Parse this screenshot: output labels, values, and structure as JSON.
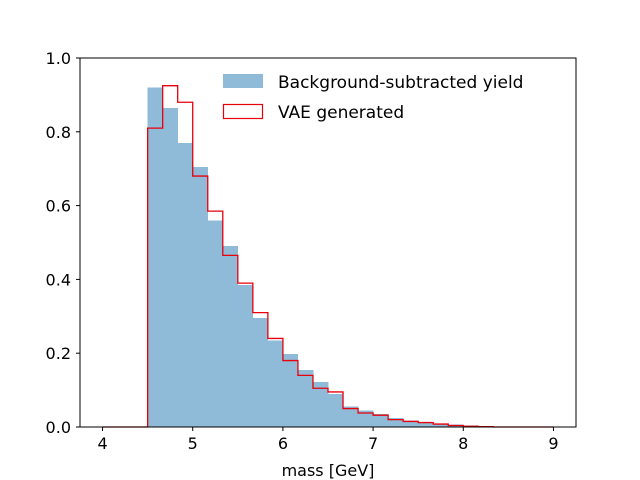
{
  "chart_data": {
    "type": "histogram",
    "title": "",
    "xlabel": "mass [GeV]",
    "ylabel": "",
    "xlim": [
      3.75,
      9.25
    ],
    "ylim": [
      0.0,
      1.0
    ],
    "xticks": [
      "4",
      "5",
      "6",
      "7",
      "8",
      "9"
    ],
    "yticks": [
      "0.0",
      "0.2",
      "0.4",
      "0.6",
      "0.8",
      "1.0"
    ],
    "bin_edges": [
      4.0,
      4.1667,
      4.3333,
      4.5,
      4.6667,
      4.8333,
      5.0,
      5.1667,
      5.3333,
      5.5,
      5.6667,
      5.8333,
      6.0,
      6.1667,
      6.3333,
      6.5,
      6.6667,
      6.8333,
      7.0,
      7.1667,
      7.3333,
      7.5,
      7.6667,
      7.8333,
      8.0,
      8.1667,
      8.3333,
      8.5,
      8.6667,
      8.8333,
      9.0
    ],
    "legend_position": "upper right",
    "series": [
      {
        "name": "Background-subtracted yield",
        "style": "filled",
        "color": "#8fbad8",
        "values": [
          0.0,
          0.0,
          0.0,
          0.92,
          0.865,
          0.77,
          0.705,
          0.56,
          0.49,
          0.385,
          0.295,
          0.235,
          0.198,
          0.155,
          0.122,
          0.09,
          0.055,
          0.045,
          0.035,
          0.025,
          0.018,
          0.013,
          0.01,
          0.007,
          0.004,
          0.003,
          0.002,
          0.001,
          0.0,
          0.0
        ]
      },
      {
        "name": "VAE generated",
        "style": "step",
        "color": "#e8000b",
        "values": [
          0.0,
          0.0,
          0.0,
          0.81,
          0.925,
          0.88,
          0.68,
          0.585,
          0.465,
          0.39,
          0.31,
          0.24,
          0.18,
          0.14,
          0.105,
          0.095,
          0.05,
          0.038,
          0.032,
          0.02,
          0.015,
          0.012,
          0.008,
          0.004,
          0.002,
          0.001,
          0.0,
          0.0,
          0.0,
          0.0
        ]
      }
    ]
  }
}
